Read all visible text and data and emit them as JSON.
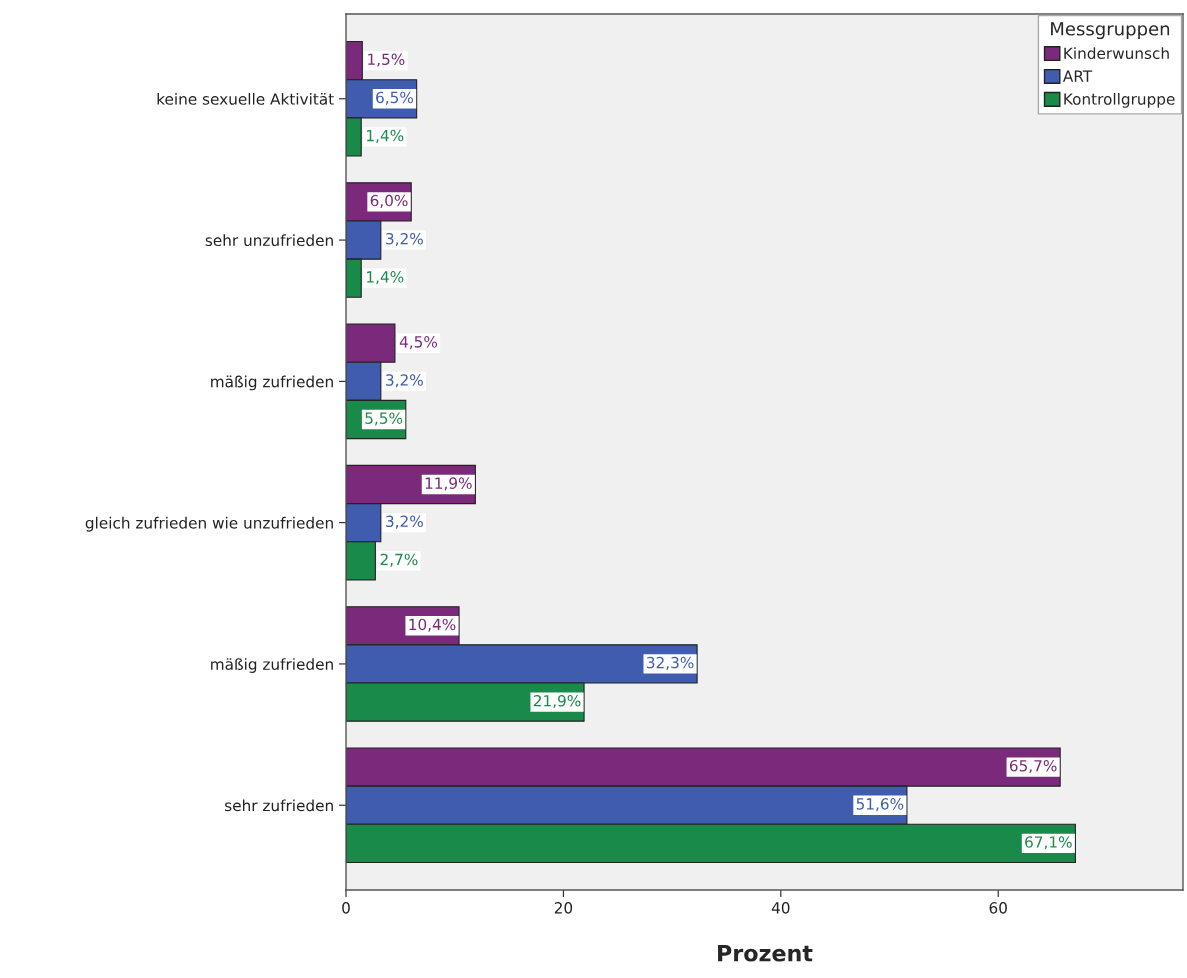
{
  "chart_data": {
    "type": "bar",
    "orientation": "horizontal",
    "xlabel": "Prozent",
    "legend_title": "Messgruppen",
    "legend": "top right",
    "grid": false,
    "categories": [
      "keine sexuelle Aktivität",
      "sehr unzufrieden",
      "mäßig zufrieden",
      "gleich zufrieden wie unzufrieden",
      "mäßig zufrieden",
      "sehr zufrieden"
    ],
    "series": [
      {
        "name": "Kinderwunsch",
        "color": "#7b2a7b",
        "values": [
          1.5,
          6.0,
          4.5,
          11.9,
          10.4,
          65.7
        ],
        "value_labels": [
          "1,5%",
          "6,0%",
          "4,5%",
          "11,9%",
          "10,4%",
          "65,7%"
        ]
      },
      {
        "name": "ART",
        "color": "#3f5cae",
        "values": [
          6.5,
          3.2,
          3.2,
          3.2,
          32.3,
          51.6
        ],
        "value_labels": [
          "6,5%",
          "3,2%",
          "3,2%",
          "3,2%",
          "32,3%",
          "51,6%"
        ]
      },
      {
        "name": "Kontrollgruppe",
        "color": "#1a8a4a",
        "values": [
          1.4,
          1.4,
          5.5,
          2.7,
          21.9,
          67.1
        ],
        "value_labels": [
          "1,4%",
          "1,4%",
          "5,5%",
          "2,7%",
          "21,9%",
          "67,1%"
        ]
      }
    ],
    "xlim": [
      0,
      77
    ],
    "xticks": [
      0,
      20,
      40,
      60
    ]
  }
}
